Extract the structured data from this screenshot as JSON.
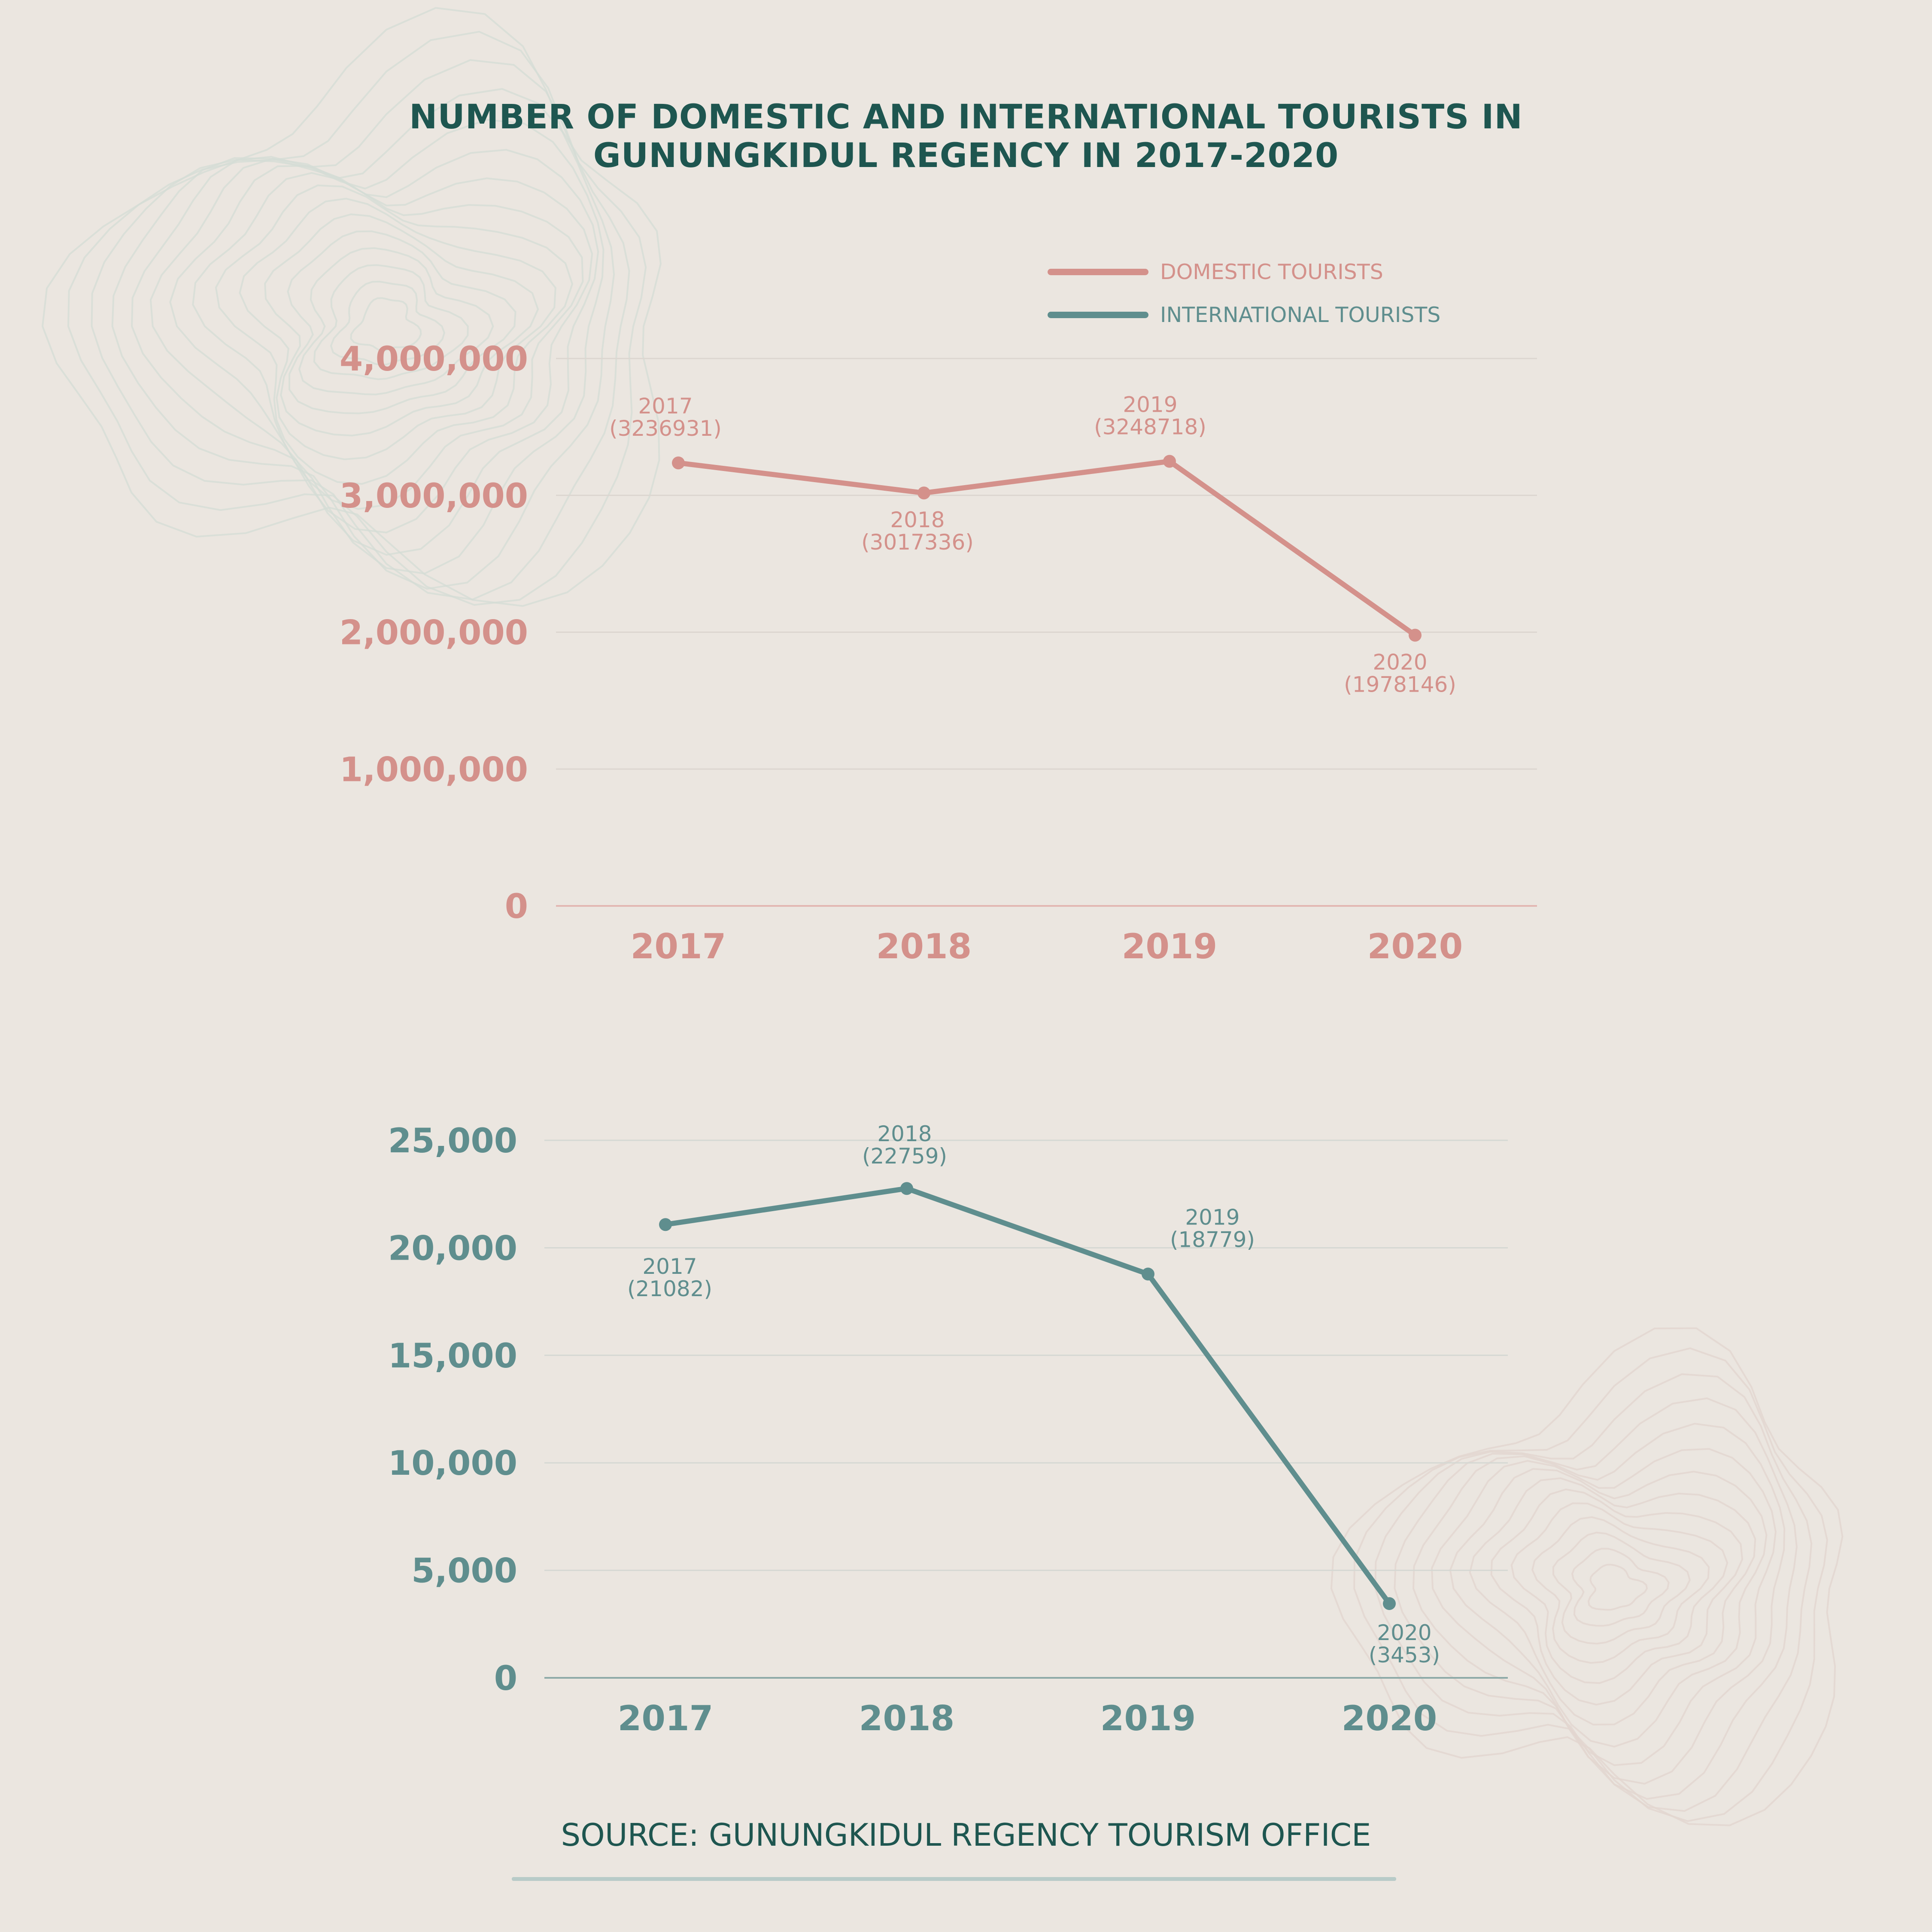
{
  "title": {
    "line1": "NUMBER OF DOMESTIC AND INTERNATIONAL TOURISTS IN",
    "line2": "GUNUNGKIDUL REGENCY IN 2017-2020"
  },
  "legend": {
    "domestic": "DOMESTIC TOURISTS",
    "international": "INTERNATIONAL TOURISTS"
  },
  "source": "SOURCE: GUNUNGKIDUL REGENCY TOURISM OFFICE",
  "colors": {
    "domestic": "#d4918b",
    "international": "#5f8e8e",
    "title": "#1e5650",
    "background": "#ebe6e0",
    "grid": "#ddd7d0"
  },
  "chart_data": [
    {
      "type": "line",
      "categories": [
        "2017",
        "2018",
        "2019",
        "2020"
      ],
      "series": [
        {
          "name": "DOMESTIC TOURISTS",
          "values": [
            3236931,
            3017336,
            3248718,
            1978146
          ]
        }
      ],
      "data_labels": [
        {
          "year": "2017",
          "value": "(3236931)",
          "position": "above"
        },
        {
          "year": "2018",
          "value": "(3017336)",
          "position": "below"
        },
        {
          "year": "2019",
          "value": "(3248718)",
          "position": "above"
        },
        {
          "year": "2020",
          "value": "(1978146)",
          "position": "below"
        }
      ],
      "yticks": [
        "0",
        "1,000,000",
        "2,000,000",
        "3,000,000",
        "4,000,000"
      ],
      "ylim": [
        0,
        4000000
      ],
      "grid": true
    },
    {
      "type": "line",
      "categories": [
        "2017",
        "2018",
        "2019",
        "2020"
      ],
      "series": [
        {
          "name": "INTERNATIONAL TOURISTS",
          "values": [
            21082,
            22759,
            18779,
            3453
          ]
        }
      ],
      "data_labels": [
        {
          "year": "2017",
          "value": "(21082)",
          "position": "below"
        },
        {
          "year": "2018",
          "value": "(22759)",
          "position": "above"
        },
        {
          "year": "2019",
          "value": "(18779)",
          "position": "above-right"
        },
        {
          "year": "2020",
          "value": "(3453)",
          "position": "below"
        }
      ],
      "yticks": [
        "0",
        "5,000",
        "10,000",
        "15,000",
        "20,000",
        "25,000"
      ],
      "ylim": [
        0,
        25000
      ],
      "grid": true
    }
  ]
}
